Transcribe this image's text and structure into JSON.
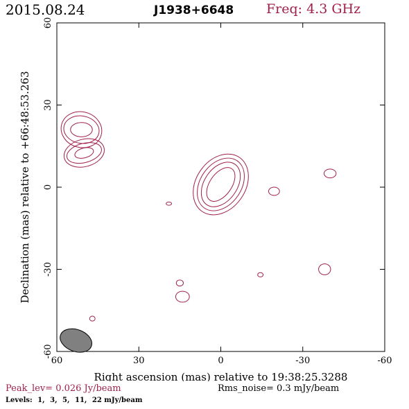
{
  "header": {
    "date": "2015.08.24",
    "source": "J1938+6648",
    "frequency": "Freq: 4.3 GHz"
  },
  "chart_data": {
    "type": "contour",
    "xlabel": "Right ascension (mas) relative to 19:38:25.3288",
    "ylabel": "Declination (mas) relative to +66:48:53.263",
    "xlim": [
      60,
      -60
    ],
    "ylim": [
      -60,
      60
    ],
    "x_ticks": [
      60,
      30,
      0,
      -30,
      -60
    ],
    "y_ticks": [
      -60,
      -30,
      0,
      30,
      60
    ],
    "contour_color": "#a0204a",
    "beam": {
      "x": 53,
      "y": -56,
      "major": 6,
      "minor": 4,
      "pa": 70,
      "fill": "#808080"
    },
    "contours": [
      {
        "name": "core",
        "x": 0,
        "y": 1,
        "levels": [
          {
            "rx": 4,
            "ry": 7,
            "rot": 35
          },
          {
            "rx": 6,
            "ry": 9,
            "rot": 35
          },
          {
            "rx": 7.5,
            "ry": 10.5,
            "rot": 35
          },
          {
            "rx": 9,
            "ry": 12,
            "rot": 35
          }
        ]
      },
      {
        "name": "north-upper",
        "x": 51,
        "y": 21,
        "levels": [
          {
            "rx": 4,
            "ry": 2.6,
            "rot": 0
          },
          {
            "rx": 6.5,
            "ry": 5,
            "rot": 10
          },
          {
            "rx": 7.5,
            "ry": 6.5,
            "rot": 15
          }
        ]
      },
      {
        "name": "north-lower",
        "x": 50,
        "y": 12.5,
        "levels": [
          {
            "rx": 3.5,
            "ry": 1.8,
            "rot": -15
          },
          {
            "rx": 6.5,
            "ry": 3.5,
            "rot": -15
          },
          {
            "rx": 7.5,
            "ry": 5,
            "rot": -15
          }
        ]
      },
      {
        "name": "east-blob",
        "x": -40,
        "y": 5,
        "levels": [
          {
            "rx": 2.2,
            "ry": 1.6,
            "rot": 0
          }
        ]
      },
      {
        "name": "east-small",
        "x": -19.5,
        "y": -1.5,
        "levels": [
          {
            "rx": 2,
            "ry": 1.5,
            "rot": 0
          }
        ]
      },
      {
        "name": "dot-1",
        "x": 19,
        "y": -6,
        "levels": [
          {
            "rx": 1,
            "ry": 0.6,
            "rot": 0
          }
        ]
      },
      {
        "name": "southeast-blob",
        "x": -38,
        "y": -30,
        "levels": [
          {
            "rx": 2.2,
            "ry": 2,
            "rot": 0
          }
        ]
      },
      {
        "name": "dot-2",
        "x": -14.5,
        "y": -32,
        "levels": [
          {
            "rx": 1,
            "ry": 0.8,
            "rot": 0
          }
        ]
      },
      {
        "name": "south-small",
        "x": 15,
        "y": -35,
        "levels": [
          {
            "rx": 1.3,
            "ry": 1.1,
            "rot": 0
          }
        ]
      },
      {
        "name": "south-blob",
        "x": 14,
        "y": -40,
        "levels": [
          {
            "rx": 2.5,
            "ry": 2,
            "rot": 0
          }
        ]
      },
      {
        "name": "dot-3",
        "x": 47,
        "y": -48,
        "levels": [
          {
            "rx": 1,
            "ry": 0.9,
            "rot": 0
          }
        ]
      }
    ]
  },
  "footer": {
    "peak": "Peak_lev=  0.026 Jy/beam",
    "rms": "Rms_noise=  0.3 mJy/beam",
    "levels_label": "Levels:",
    "levels": [
      "1,",
      "3,",
      "5,",
      "11,",
      "22 mJy/beam"
    ]
  }
}
